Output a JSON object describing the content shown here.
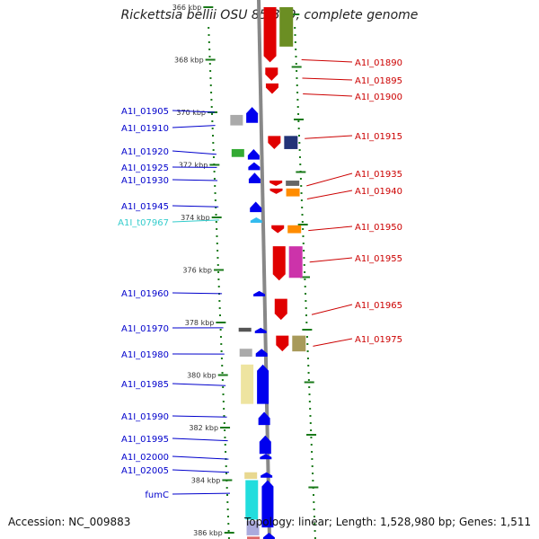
{
  "title": "Rickettsia bellii OSU 85-389, complete genome",
  "accession": "Accession: NC_009883",
  "summary": "Topology: linear; Length: 1,528,980 bp; Genes: 1,511",
  "colors": {
    "left_labels": "#0000cc",
    "right_labels": "#cc0000",
    "trna_label": "#33cccc",
    "tick_green": "#1a7a1a",
    "backbone": "#888888"
  },
  "kbp_ticks": [
    {
      "kbp": 366,
      "label": "366 kbp"
    },
    {
      "kbp": 368,
      "label": "368 kbp"
    },
    {
      "kbp": 370,
      "label": "370 kbp"
    },
    {
      "kbp": 372,
      "label": "372 kbp"
    },
    {
      "kbp": 374,
      "label": "374 kbp"
    },
    {
      "kbp": 376,
      "label": "376 kbp"
    },
    {
      "kbp": 378,
      "label": "378 kbp"
    },
    {
      "kbp": 380,
      "label": "380 kbp"
    },
    {
      "kbp": 382,
      "label": "382 kbp"
    },
    {
      "kbp": 384,
      "label": "384 kbp"
    },
    {
      "kbp": 386,
      "label": "386 kbp"
    }
  ],
  "left_genes": [
    {
      "label": "A1I_01905",
      "kbp": 370.0,
      "color": "#0000cc"
    },
    {
      "label": "A1I_01910",
      "kbp": 370.5,
      "color": "#0000cc"
    },
    {
      "label": "A1I_01920",
      "kbp": 371.6,
      "color": "#0000cc"
    },
    {
      "label": "A1I_01925",
      "kbp": 372.1,
      "color": "#0000cc"
    },
    {
      "label": "A1I_01930",
      "kbp": 372.6,
      "color": "#0000cc"
    },
    {
      "label": "A1I_01945",
      "kbp": 373.6,
      "color": "#0000cc"
    },
    {
      "label": "A1I_t07967",
      "kbp": 374.1,
      "color": "#33cccc"
    },
    {
      "label": "A1I_01960",
      "kbp": 376.9,
      "color": "#0000cc"
    },
    {
      "label": "A1I_01970",
      "kbp": 378.2,
      "color": "#0000cc"
    },
    {
      "label": "A1I_01980",
      "kbp": 379.2,
      "color": "#0000cc"
    },
    {
      "label": "A1I_01985",
      "kbp": 380.4,
      "color": "#0000cc"
    },
    {
      "label": "A1I_01990",
      "kbp": 381.6,
      "color": "#0000cc"
    },
    {
      "label": "A1I_01995",
      "kbp": 382.5,
      "color": "#0000cc"
    },
    {
      "label": "A1I_02000",
      "kbp": 383.2,
      "color": "#0000cc"
    },
    {
      "label": "A1I_02005",
      "kbp": 383.7,
      "color": "#0000cc"
    },
    {
      "label": "fumC",
      "kbp": 384.5,
      "color": "#0000cc"
    }
  ],
  "right_genes": [
    {
      "label": "A1I_01890",
      "kbp": 368.0
    },
    {
      "label": "A1I_01895",
      "kbp": 368.7
    },
    {
      "label": "A1I_01900",
      "kbp": 369.3
    },
    {
      "label": "A1I_01915",
      "kbp": 371.0
    },
    {
      "label": "A1I_01935",
      "kbp": 372.8
    },
    {
      "label": "A1I_01940",
      "kbp": 373.3
    },
    {
      "label": "A1I_01950",
      "kbp": 374.5
    },
    {
      "label": "A1I_01955",
      "kbp": 375.7
    },
    {
      "label": "A1I_01965",
      "kbp": 377.7
    },
    {
      "label": "A1I_01975",
      "kbp": 378.9
    }
  ],
  "features": [
    {
      "type": "arrow",
      "lane": "fr",
      "from": 366.0,
      "to": 368.1,
      "dir": "down",
      "color": "#e00000"
    },
    {
      "type": "arrow",
      "lane": "fr",
      "from": 368.3,
      "to": 368.8,
      "dir": "down",
      "color": "#e00000"
    },
    {
      "type": "arrow",
      "lane": "fr",
      "from": 368.9,
      "to": 369.3,
      "dir": "down",
      "color": "#e00000"
    },
    {
      "type": "arrow",
      "lane": "fr",
      "from": 370.9,
      "to": 371.4,
      "dir": "down",
      "color": "#e00000"
    },
    {
      "type": "arrow",
      "lane": "fr",
      "from": 372.6,
      "to": 372.8,
      "dir": "down",
      "color": "#e00000"
    },
    {
      "type": "arrow",
      "lane": "fr",
      "from": 372.9,
      "to": 373.1,
      "dir": "down",
      "color": "#e00000"
    },
    {
      "type": "arrow",
      "lane": "fr",
      "from": 374.3,
      "to": 374.6,
      "dir": "down",
      "color": "#e00000"
    },
    {
      "type": "arrow",
      "lane": "fr",
      "from": 375.1,
      "to": 376.4,
      "dir": "down",
      "color": "#e00000"
    },
    {
      "type": "arrow",
      "lane": "fr",
      "from": 377.1,
      "to": 377.9,
      "dir": "down",
      "color": "#e00000"
    },
    {
      "type": "arrow",
      "lane": "fr",
      "from": 378.5,
      "to": 379.1,
      "dir": "down",
      "color": "#e00000"
    },
    {
      "type": "box",
      "lane": "rr",
      "from": 366.0,
      "to": 367.5,
      "color": "#6b8e23"
    },
    {
      "type": "box",
      "lane": "rr",
      "from": 370.9,
      "to": 371.4,
      "color": "#223377"
    },
    {
      "type": "box",
      "lane": "rr",
      "from": 372.6,
      "to": 372.8,
      "color": "#666666"
    },
    {
      "type": "box",
      "lane": "rr",
      "from": 372.9,
      "to": 373.2,
      "color": "#ff8c00"
    },
    {
      "type": "box",
      "lane": "rr",
      "from": 374.3,
      "to": 374.6,
      "color": "#ff8c00"
    },
    {
      "type": "box",
      "lane": "rr",
      "from": 375.1,
      "to": 376.3,
      "color": "#cc33aa"
    },
    {
      "type": "box",
      "lane": "rr",
      "from": 378.5,
      "to": 379.1,
      "color": "#a89a5a"
    },
    {
      "type": "arrow",
      "lane": "fl",
      "from": 369.8,
      "to": 370.4,
      "dir": "up",
      "color": "#0000ee"
    },
    {
      "type": "arrow",
      "lane": "fl",
      "from": 371.4,
      "to": 371.8,
      "dir": "up",
      "color": "#0000ee"
    },
    {
      "type": "arrow",
      "lane": "fl",
      "from": 371.9,
      "to": 372.2,
      "dir": "up",
      "color": "#0000ee"
    },
    {
      "type": "arrow",
      "lane": "fl",
      "from": 372.3,
      "to": 372.7,
      "dir": "up",
      "color": "#0000ee"
    },
    {
      "type": "arrow",
      "lane": "fl",
      "from": 373.4,
      "to": 373.8,
      "dir": "up",
      "color": "#0000ee"
    },
    {
      "type": "arrow",
      "lane": "fl",
      "from": 374.0,
      "to": 374.2,
      "dir": "up",
      "color": "#33bbee"
    },
    {
      "type": "arrow",
      "lane": "fl",
      "from": 376.8,
      "to": 377.0,
      "dir": "up",
      "color": "#0000ee"
    },
    {
      "type": "arrow",
      "lane": "fl",
      "from": 378.2,
      "to": 378.4,
      "dir": "up",
      "color": "#0000ee"
    },
    {
      "type": "arrow",
      "lane": "fl",
      "from": 379.0,
      "to": 379.3,
      "dir": "up",
      "color": "#0000ee"
    },
    {
      "type": "arrow",
      "lane": "fl",
      "from": 379.6,
      "to": 381.1,
      "dir": "up",
      "color": "#0000ee"
    },
    {
      "type": "arrow",
      "lane": "fl",
      "from": 381.4,
      "to": 381.9,
      "dir": "up",
      "color": "#0000ee"
    },
    {
      "type": "arrow",
      "lane": "fl",
      "from": 382.3,
      "to": 383.0,
      "dir": "up",
      "color": "#0000ee"
    },
    {
      "type": "arrow",
      "lane": "fl",
      "from": 383.0,
      "to": 383.2,
      "dir": "up",
      "color": "#0000ee"
    },
    {
      "type": "arrow",
      "lane": "fl",
      "from": 383.7,
      "to": 383.9,
      "dir": "up",
      "color": "#0000ee"
    },
    {
      "type": "arrow",
      "lane": "fl",
      "from": 384.0,
      "to": 385.8,
      "dir": "up",
      "color": "#0000ee"
    },
    {
      "type": "arrow",
      "lane": "fl",
      "from": 386.0,
      "to": 386.3,
      "dir": "up",
      "color": "#0000ee"
    },
    {
      "type": "box",
      "lane": "rl",
      "from": 370.1,
      "to": 370.5,
      "color": "#aaaaaa"
    },
    {
      "type": "box",
      "lane": "rl",
      "from": 371.4,
      "to": 371.7,
      "color": "#33aa33"
    },
    {
      "type": "box",
      "lane": "rl",
      "from": 378.2,
      "to": 378.35,
      "color": "#555555"
    },
    {
      "type": "box",
      "lane": "rl",
      "from": 379.0,
      "to": 379.3,
      "color": "#aaaaaa"
    },
    {
      "type": "box",
      "lane": "rl",
      "from": 379.6,
      "to": 381.1,
      "color": "#eee4a0"
    },
    {
      "type": "box",
      "lane": "rl",
      "from": 383.7,
      "to": 383.95,
      "color": "#e8d890"
    },
    {
      "type": "box",
      "lane": "rl",
      "from": 384.0,
      "to": 385.5,
      "color": "#22dddd"
    },
    {
      "type": "box",
      "lane": "rl",
      "from": 385.55,
      "to": 386.1,
      "color": "#aaaadd"
    },
    {
      "type": "box",
      "lane": "rl",
      "from": 386.15,
      "to": 386.4,
      "color": "#dd6666"
    }
  ]
}
